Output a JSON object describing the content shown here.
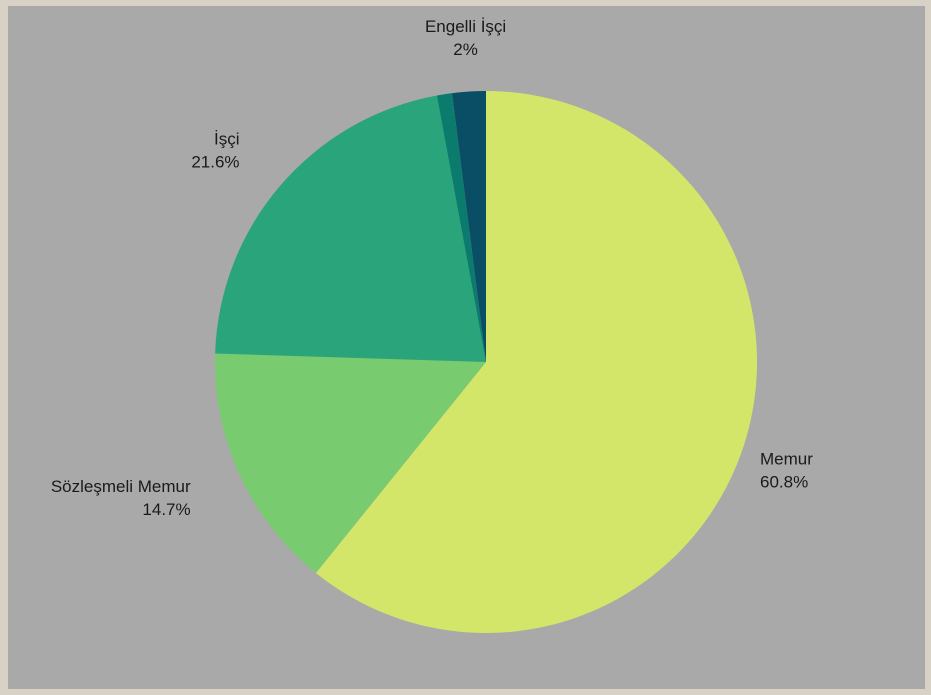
{
  "chart_data": {
    "type": "pie",
    "title": "",
    "slices": [
      {
        "name": "Memur",
        "value": 60.8,
        "value_label": "60.8%",
        "color": "#d4e66a",
        "show_label": true
      },
      {
        "name": "Sözleşmeli Memur",
        "value": 14.7,
        "value_label": "14.7%",
        "color": "#79cb70",
        "show_label": true
      },
      {
        "name": "İşçi",
        "value": 21.6,
        "value_label": "21.6%",
        "color": "#2aa47a",
        "show_label": true
      },
      {
        "name": "",
        "value": 0.9,
        "value_label": "",
        "color": "#0b7b6e",
        "show_label": false
      },
      {
        "name": "Engelli İşçi",
        "value": 2,
        "value_label": "2%",
        "color": "#0a4e66",
        "show_label": true
      }
    ],
    "start_angle": "top",
    "direction": "clockwise",
    "legend": "none"
  }
}
